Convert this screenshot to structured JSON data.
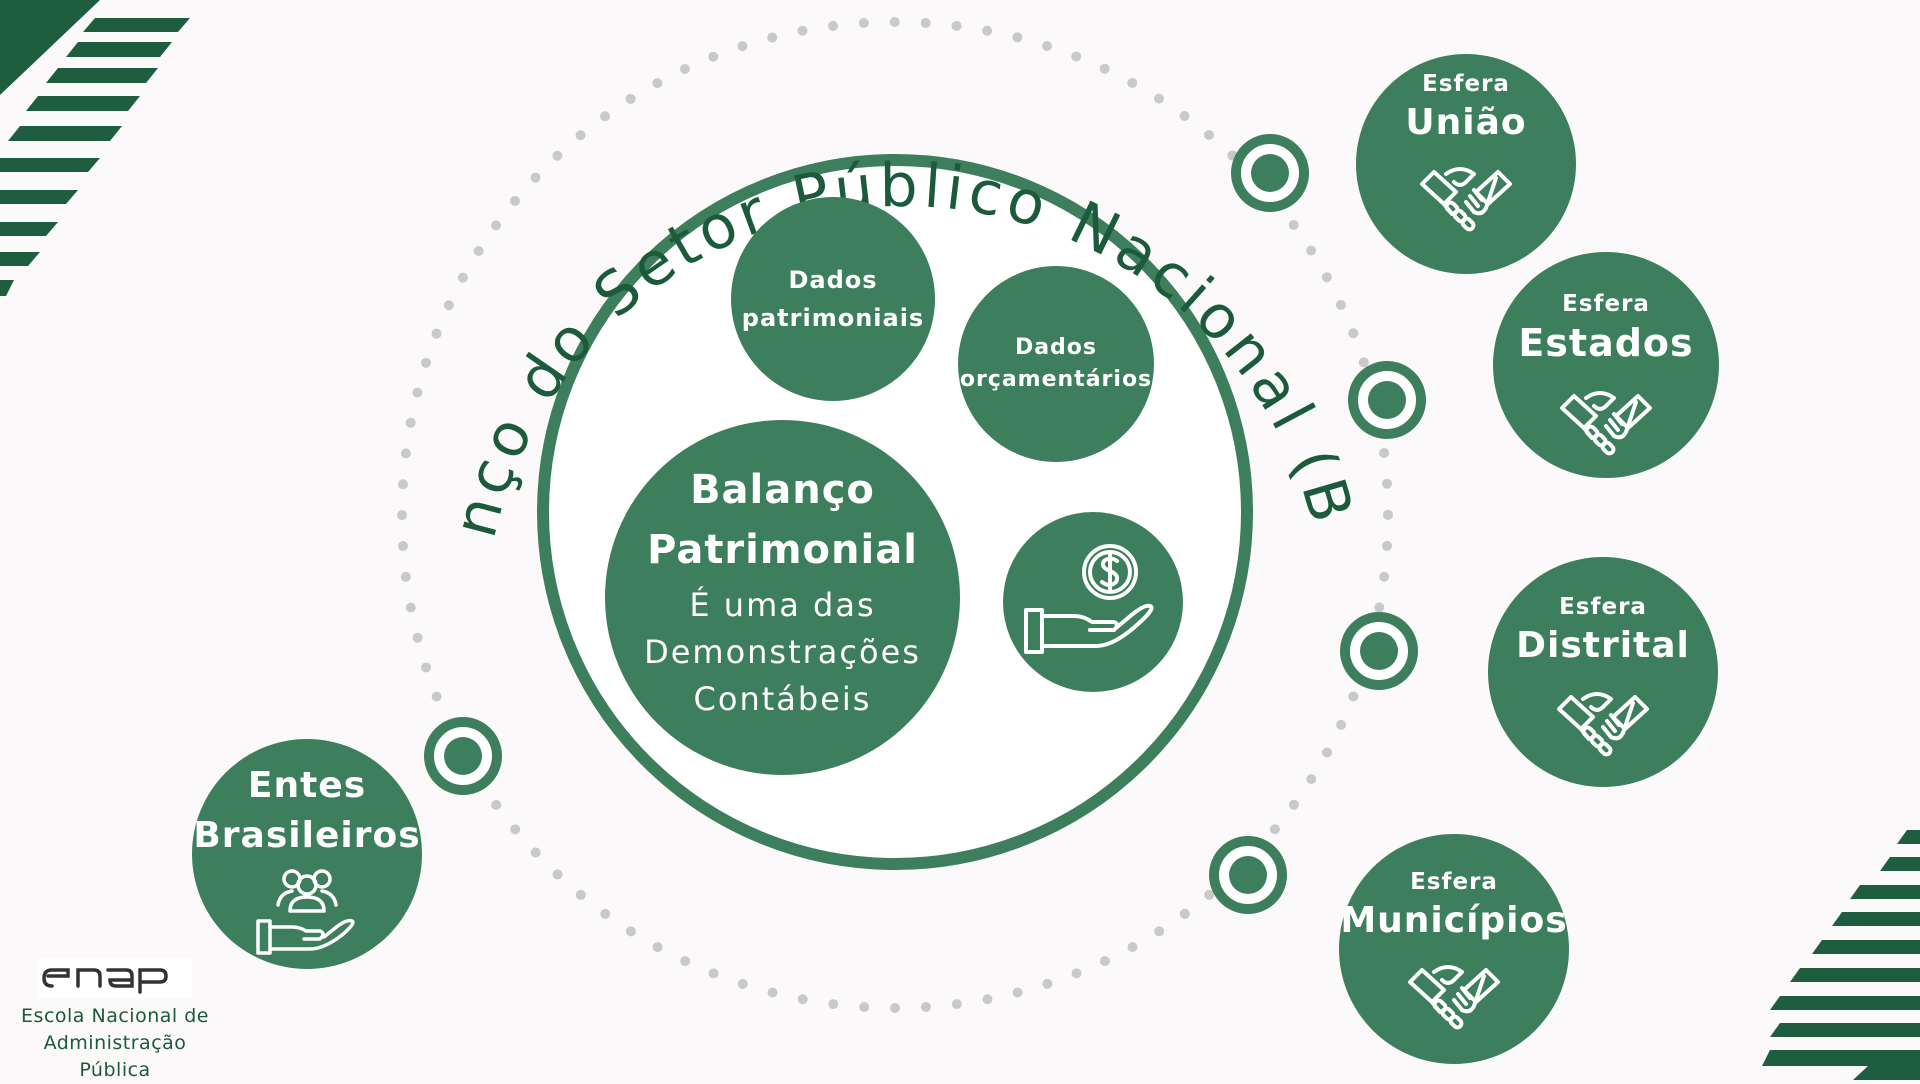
{
  "title": "Balanço do Setor Público Nacional (BSPN)",
  "center": {
    "dados_patrimoniais": "Dados patrimoniais",
    "dados_patrimoniais_l1": "Dados",
    "dados_patrimoniais_l2": "patrimoniais",
    "dados_orcamentarios_l1": "Dados",
    "dados_orcamentarios_l2": "orçamentários",
    "balanco_l1": "Balanço",
    "balanco_l2": "Patrimonial",
    "desc_l1": "É uma das",
    "desc_l2": "Demonstrações",
    "desc_l3": "Contábeis",
    "money_icon": "hand-dollar-icon"
  },
  "entes": {
    "l1": "Entes",
    "l2": "Brasileiros",
    "icon": "hand-people-icon"
  },
  "esferas": [
    {
      "label": "Esfera",
      "name": "União",
      "icon": "handshake-icon"
    },
    {
      "label": "Esfera",
      "name": "Estados",
      "icon": "handshake-icon"
    },
    {
      "label": "Esfera",
      "name": "Distrital",
      "icon": "handshake-icon"
    },
    {
      "label": "Esfera",
      "name": "Municípios",
      "icon": "handshake-icon"
    }
  ],
  "logo": {
    "wordmark": "enap",
    "caption_l1": "Escola Nacional de",
    "caption_l2": "Administração",
    "caption_l3": "Pública"
  },
  "colors": {
    "primary_green": "#3d7e5c",
    "dark_green": "#1b5a3a",
    "stripe_green": "#1e5e3e",
    "dot_gray": "#c9c9c9",
    "background": "#fbf9fa"
  }
}
